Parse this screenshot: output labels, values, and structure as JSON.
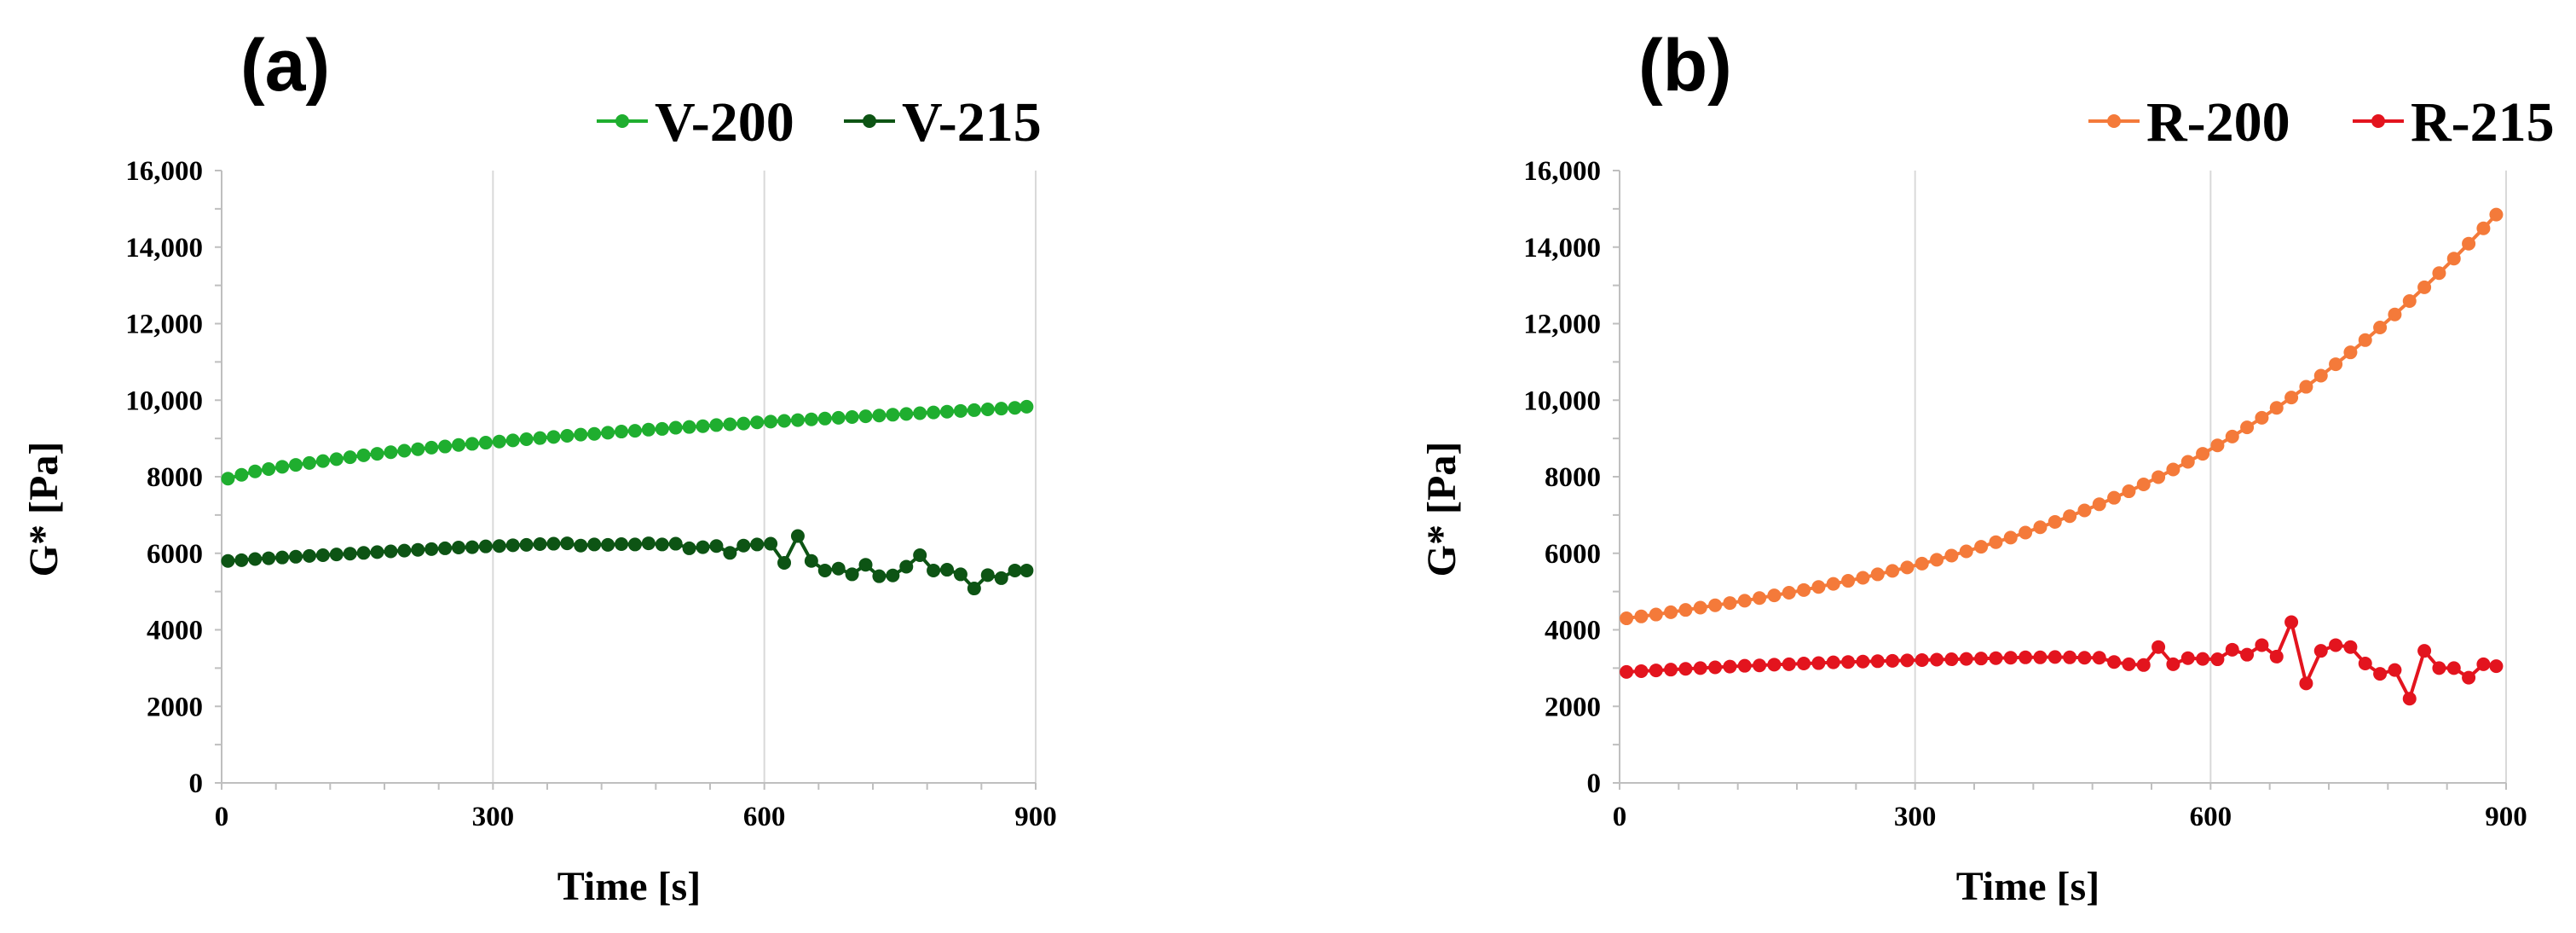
{
  "chart_data": [
    {
      "type": "line",
      "panel_label": "(a)",
      "xlabel": "Time [s]",
      "ylabel": "G* [Pa]",
      "xlim": [
        0,
        900
      ],
      "ylim": [
        0,
        16000
      ],
      "x_ticks": [
        0,
        300,
        600,
        900
      ],
      "x_tick_labels": [
        "0",
        "300",
        "600",
        "900"
      ],
      "y_ticks": [
        0,
        2000,
        4000,
        6000,
        8000,
        10000,
        12000,
        14000,
        16000
      ],
      "y_tick_labels": [
        "0",
        "2000",
        "4000",
        "6000",
        "8000",
        "10,000",
        "12,000",
        "14,000",
        "16,000"
      ],
      "grid": "vertical",
      "legend_position": "top-right",
      "series": [
        {
          "name": "V-200",
          "color": "#1fae2f",
          "x": [
            7,
            22,
            37,
            52,
            67,
            82,
            97,
            112,
            127,
            142,
            157,
            172,
            187,
            202,
            217,
            232,
            247,
            262,
            277,
            292,
            307,
            322,
            337,
            352,
            367,
            382,
            397,
            412,
            427,
            442,
            457,
            472,
            487,
            502,
            517,
            532,
            547,
            562,
            577,
            592,
            607,
            622,
            637,
            652,
            667,
            682,
            697,
            712,
            727,
            742,
            757,
            772,
            787,
            802,
            817,
            832,
            847,
            862,
            877,
            890
          ],
          "values": [
            7950,
            8050,
            8140,
            8200,
            8260,
            8310,
            8360,
            8410,
            8460,
            8510,
            8560,
            8600,
            8640,
            8680,
            8720,
            8760,
            8790,
            8830,
            8860,
            8890,
            8920,
            8950,
            8980,
            9010,
            9040,
            9070,
            9100,
            9120,
            9150,
            9180,
            9200,
            9230,
            9250,
            9280,
            9300,
            9320,
            9350,
            9370,
            9390,
            9420,
            9440,
            9460,
            9480,
            9500,
            9520,
            9540,
            9560,
            9580,
            9600,
            9620,
            9640,
            9660,
            9680,
            9700,
            9720,
            9740,
            9760,
            9780,
            9800,
            9830
          ]
        },
        {
          "name": "V-215",
          "color": "#0d5414",
          "x": [
            7,
            22,
            37,
            52,
            67,
            82,
            97,
            112,
            127,
            142,
            157,
            172,
            187,
            202,
            217,
            232,
            247,
            262,
            277,
            292,
            307,
            322,
            337,
            352,
            367,
            382,
            397,
            412,
            427,
            442,
            457,
            472,
            487,
            502,
            517,
            532,
            547,
            562,
            577,
            592,
            607,
            622,
            637,
            652,
            667,
            682,
            697,
            712,
            727,
            742,
            757,
            772,
            787,
            802,
            817,
            832,
            847,
            862,
            877,
            890
          ],
          "values": [
            5800,
            5820,
            5850,
            5870,
            5890,
            5910,
            5930,
            5950,
            5970,
            5990,
            6010,
            6030,
            6050,
            6070,
            6090,
            6110,
            6130,
            6150,
            6160,
            6180,
            6190,
            6210,
            6220,
            6240,
            6250,
            6260,
            6200,
            6230,
            6220,
            6240,
            6230,
            6260,
            6230,
            6250,
            6130,
            6160,
            6190,
            6010,
            6200,
            6230,
            6250,
            5750,
            6450,
            5800,
            5550,
            5600,
            5450,
            5700,
            5400,
            5420,
            5650,
            5950,
            5550,
            5570,
            5450,
            5080,
            5430,
            5350,
            5550,
            5550
          ]
        }
      ]
    },
    {
      "type": "line",
      "panel_label": "(b)",
      "xlabel": "Time [s]",
      "ylabel": "G* [Pa]",
      "xlim": [
        0,
        900
      ],
      "ylim": [
        0,
        16000
      ],
      "x_ticks": [
        0,
        300,
        600,
        900
      ],
      "x_tick_labels": [
        "0",
        "300",
        "600",
        "900"
      ],
      "y_ticks": [
        0,
        2000,
        4000,
        6000,
        8000,
        10000,
        12000,
        14000,
        16000
      ],
      "y_tick_labels": [
        "0",
        "2000",
        "4000",
        "6000",
        "8000",
        "10,000",
        "12,000",
        "14,000",
        "16,000"
      ],
      "grid": "vertical",
      "legend_position": "top-right",
      "series": [
        {
          "name": "R-200",
          "color": "#f47a3a",
          "x": [
            7,
            22,
            37,
            52,
            67,
            82,
            97,
            112,
            127,
            142,
            157,
            172,
            187,
            202,
            217,
            232,
            247,
            262,
            277,
            292,
            307,
            322,
            337,
            352,
            367,
            382,
            397,
            412,
            427,
            442,
            457,
            472,
            487,
            502,
            517,
            532,
            547,
            562,
            577,
            592,
            607,
            622,
            637,
            652,
            667,
            682,
            697,
            712,
            727,
            742,
            757,
            772,
            787,
            802,
            817,
            832,
            847,
            862,
            877,
            890
          ],
          "values": [
            4300,
            4350,
            4400,
            4460,
            4520,
            4580,
            4640,
            4700,
            4760,
            4830,
            4900,
            4970,
            5040,
            5120,
            5200,
            5280,
            5360,
            5450,
            5540,
            5630,
            5730,
            5830,
            5940,
            6050,
            6170,
            6290,
            6410,
            6540,
            6680,
            6820,
            6970,
            7120,
            7280,
            7450,
            7620,
            7800,
            7990,
            8190,
            8390,
            8600,
            8820,
            9050,
            9290,
            9540,
            9800,
            10070,
            10350,
            10640,
            10940,
            11250,
            11570,
            11900,
            12240,
            12590,
            12950,
            13320,
            13700,
            14090,
            14490,
            14850
          ]
        },
        {
          "name": "R-215",
          "color": "#e3141e",
          "x": [
            7,
            22,
            37,
            52,
            67,
            82,
            97,
            112,
            127,
            142,
            157,
            172,
            187,
            202,
            217,
            232,
            247,
            262,
            277,
            292,
            307,
            322,
            337,
            352,
            367,
            382,
            397,
            412,
            427,
            442,
            457,
            472,
            487,
            502,
            517,
            532,
            547,
            562,
            577,
            592,
            607,
            622,
            637,
            652,
            667,
            682,
            697,
            712,
            727,
            742,
            757,
            772,
            787,
            802,
            817,
            832,
            847,
            862,
            877,
            890
          ],
          "values": [
            2900,
            2920,
            2940,
            2960,
            2980,
            3000,
            3020,
            3040,
            3060,
            3070,
            3090,
            3100,
            3120,
            3130,
            3150,
            3160,
            3170,
            3180,
            3190,
            3200,
            3210,
            3220,
            3230,
            3240,
            3250,
            3260,
            3270,
            3280,
            3280,
            3290,
            3280,
            3270,
            3270,
            3160,
            3100,
            3080,
            3550,
            3100,
            3260,
            3240,
            3230,
            3480,
            3350,
            3600,
            3300,
            4200,
            2600,
            3450,
            3600,
            3550,
            3120,
            2850,
            2950,
            2200,
            3450,
            3000,
            3000,
            2750,
            3100,
            3050
          ]
        }
      ]
    }
  ]
}
